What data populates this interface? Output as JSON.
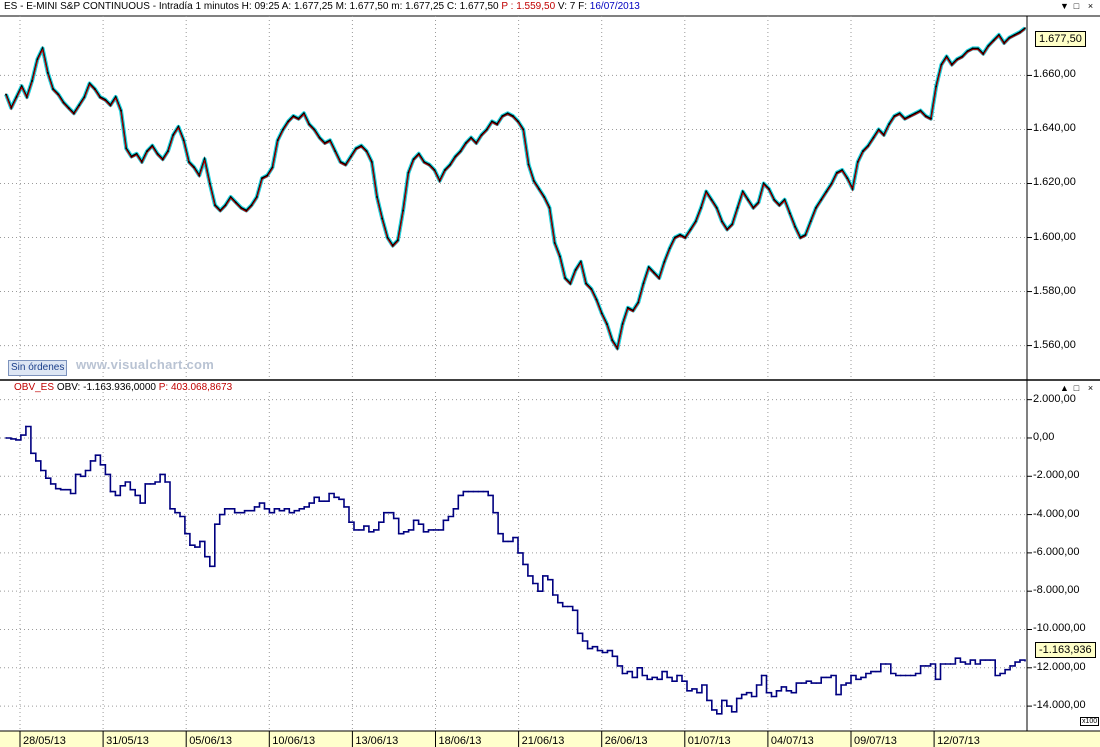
{
  "header": {
    "symbol": "ES - E-MINI S&P CONTINUOUS - Intradía 1 minutos",
    "h_label": "H:",
    "h_value": "09:25",
    "a_label": "A:",
    "a_value": "1.677,25",
    "m_label": "M:",
    "m_value": "1.677,50",
    "low_label": "m:",
    "low_value": "1.677,25",
    "c_label": "C:",
    "c_value": "1.677,50",
    "p_label": "P :",
    "p_value": "1.559,50",
    "v_label": "V:",
    "v_value": "7",
    "f_label": "F:",
    "f_value": "16/07/2013"
  },
  "subpanel_header": {
    "name": "OBV_ES",
    "obv_label": "OBV:",
    "obv_value": "-1.163.936,0000",
    "p_label": "P:",
    "p_value": "403.068,8673"
  },
  "controls": {
    "close": "×",
    "maximize": "□",
    "down": "▼",
    "up": "▲"
  },
  "orders_button": "Sin órdenes",
  "watermark": "www.visualchart.com",
  "price_value_box": "1.677,50",
  "obv_value_box": "-1.163,936",
  "obv_multiplier": "x100",
  "colors": {
    "price_bars": "#000000",
    "price_ma": "#c00000",
    "price_envelope": "#22d3de",
    "obv_line": "#000080",
    "obv_highlight": "#c00000",
    "grid": "#9a9a9a",
    "axis_bar": "#ffffcc"
  },
  "chart_data": [
    {
      "type": "line",
      "title": "ES - E-MINI S&P CONTINUOUS - Intradía 1 minutos",
      "x_tick_labels": [
        "28/05/13",
        "31/05/13",
        "05/06/13",
        "10/06/13",
        "13/06/13",
        "18/06/13",
        "21/06/13",
        "26/06/13",
        "01/07/13",
        "04/07/13",
        "09/07/13",
        "12/07/13"
      ],
      "y_tick_labels": [
        "1.560,00",
        "1.580,00",
        "1.600,00",
        "1.620,00",
        "1.640,00",
        "1.660,00"
      ],
      "ylim": [
        1548,
        1682
      ],
      "grid": true,
      "series": [
        {
          "name": "ES",
          "values": [
            1653,
            1648,
            1652,
            1656,
            1652,
            1658,
            1666,
            1670,
            1661,
            1655,
            1653,
            1650,
            1648,
            1646,
            1649,
            1652,
            1657,
            1655,
            1652,
            1651,
            1649,
            1652,
            1647,
            1633,
            1630,
            1631,
            1628,
            1632,
            1634,
            1631,
            1629,
            1632,
            1638,
            1641,
            1636,
            1628,
            1626,
            1623,
            1629,
            1620,
            1612,
            1610,
            1612,
            1615,
            1613,
            1611,
            1610,
            1612,
            1615,
            1622,
            1623,
            1626,
            1636,
            1640,
            1643,
            1645,
            1644,
            1646,
            1642,
            1640,
            1637,
            1635,
            1636,
            1632,
            1628,
            1627,
            1630,
            1633,
            1634,
            1632,
            1628,
            1615,
            1607,
            1600,
            1597,
            1599,
            1610,
            1624,
            1629,
            1631,
            1628,
            1627,
            1625,
            1621,
            1625,
            1627,
            1630,
            1632,
            1635,
            1637,
            1635,
            1638,
            1640,
            1643,
            1642,
            1645,
            1646,
            1645,
            1643,
            1640,
            1627,
            1621,
            1618,
            1615,
            1611,
            1598,
            1593,
            1585,
            1583,
            1588,
            1591,
            1583,
            1581,
            1577,
            1572,
            1568,
            1562,
            1559,
            1568,
            1574,
            1573,
            1576,
            1583,
            1589,
            1587,
            1585,
            1591,
            1596,
            1600,
            1601,
            1600,
            1603,
            1606,
            1611,
            1617,
            1614,
            1611,
            1606,
            1603,
            1605,
            1611,
            1617,
            1614,
            1611,
            1613,
            1620,
            1618,
            1614,
            1612,
            1614,
            1609,
            1604,
            1600,
            1601,
            1606,
            1611,
            1614,
            1617,
            1620,
            1624,
            1625,
            1622,
            1618,
            1628,
            1632,
            1634,
            1637,
            1640,
            1638,
            1642,
            1645,
            1646,
            1644,
            1645,
            1646,
            1647,
            1645,
            1644,
            1656,
            1664,
            1667,
            1664,
            1666,
            1667,
            1669,
            1670,
            1670,
            1668,
            1671,
            1673,
            1675,
            1672,
            1674,
            1675,
            1676,
            1677.5
          ]
        }
      ]
    },
    {
      "type": "line",
      "title": "OBV_ES",
      "x_tick_labels": [
        "28/05/13",
        "31/05/13",
        "05/06/13",
        "10/06/13",
        "13/06/13",
        "18/06/13",
        "21/06/13",
        "26/06/13",
        "01/07/13",
        "04/07/13",
        "09/07/13",
        "12/07/13"
      ],
      "y_tick_labels": [
        "2.000,00",
        "0,00",
        "-2.000,00",
        "-4.000,00",
        "-6.000,00",
        "-8.000,00",
        "-10.000,00",
        "-12.000,00",
        "-14.000,00"
      ],
      "ylim": [
        -15300,
        2400
      ],
      "y_unit": "x100",
      "grid": true,
      "series": [
        {
          "name": "OBV",
          "values": [
            0,
            -50,
            -100,
            150,
            600,
            -800,
            -1200,
            -1700,
            -2100,
            -2400,
            -2650,
            -2700,
            -2700,
            -2900,
            -1900,
            -2000,
            -1700,
            -1200,
            -900,
            -1400,
            -1900,
            -2800,
            -3000,
            -2500,
            -2300,
            -2700,
            -3000,
            -3400,
            -2400,
            -2400,
            -2300,
            -1900,
            -2300,
            -3700,
            -3900,
            -4100,
            -5000,
            -5600,
            -5700,
            -5400,
            -6200,
            -6700,
            -4500,
            -4000,
            -3700,
            -3700,
            -3900,
            -3900,
            -3800,
            -3800,
            -3600,
            -3400,
            -3700,
            -3900,
            -3700,
            -3800,
            -3700,
            -3900,
            -3800,
            -3700,
            -3600,
            -3400,
            -3100,
            -3300,
            -3300,
            -2900,
            -3100,
            -3200,
            -3600,
            -4400,
            -4800,
            -4800,
            -4600,
            -4900,
            -4800,
            -4400,
            -3900,
            -3900,
            -4200,
            -5000,
            -4900,
            -4800,
            -4300,
            -4500,
            -4900,
            -4800,
            -4800,
            -4800,
            -4300,
            -4100,
            -3700,
            -3000,
            -2800,
            -2800,
            -2800,
            -2800,
            -2800,
            -3000,
            -3900,
            -5000,
            -5400,
            -5400,
            -5200,
            -6000,
            -6600,
            -7200,
            -7600,
            -8000,
            -7200,
            -7400,
            -8200,
            -8600,
            -8800,
            -8800,
            -9000,
            -10200,
            -10600,
            -11000,
            -10900,
            -11100,
            -11200,
            -11100,
            -11400,
            -11900,
            -12300,
            -12200,
            -12500,
            -12000,
            -12400,
            -12600,
            -12500,
            -12600,
            -12200,
            -12500,
            -12700,
            -12400,
            -12700,
            -13200,
            -13100,
            -13300,
            -12900,
            -13700,
            -14200,
            -14400,
            -13700,
            -14000,
            -14300,
            -13600,
            -13400,
            -13300,
            -13500,
            -12900,
            -12400,
            -13300,
            -13500,
            -13200,
            -13000,
            -13200,
            -13300,
            -12800,
            -12800,
            -12700,
            -12800,
            -12800,
            -12500,
            -12500,
            -12400,
            -13400,
            -12900,
            -12800,
            -12400,
            -12600,
            -12500,
            -12300,
            -12200,
            -12200,
            -11800,
            -11800,
            -12300,
            -12400,
            -12400,
            -12400,
            -12400,
            -12300,
            -11900,
            -11900,
            -11800,
            -12600,
            -11800,
            -11800,
            -11800,
            -11500,
            -11700,
            -11800,
            -11600,
            -11800,
            -11600,
            -11600,
            -11600,
            -12400,
            -12300,
            -12100,
            -11900,
            -11700,
            -11600,
            -11639
          ]
        }
      ]
    }
  ]
}
